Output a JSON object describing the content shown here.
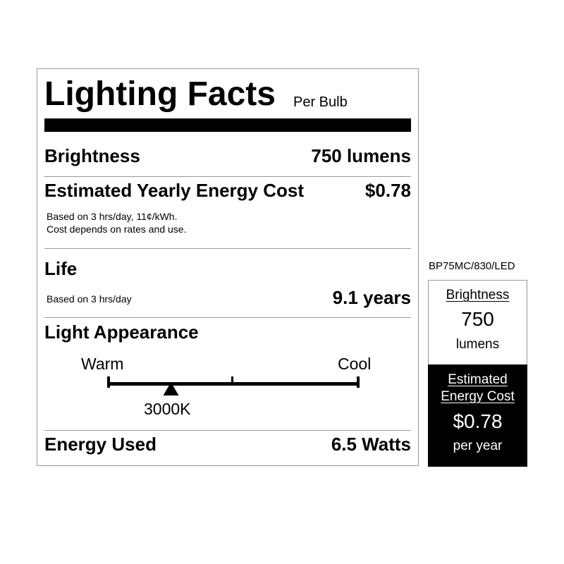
{
  "label": {
    "title": "Lighting Facts",
    "subtitle": "Per Bulb",
    "brightness": {
      "label": "Brightness",
      "value": "750 lumens"
    },
    "energy_cost": {
      "label": "Estimated Yearly Energy Cost",
      "value": "$0.78",
      "notes": [
        "Based on 3 hrs/day, 11¢/kWh.",
        "Cost depends on rates and use."
      ]
    },
    "life": {
      "label": "Life",
      "note": "Based on 3 hrs/day",
      "value": "9.1 years"
    },
    "light_appearance": {
      "label": "Light Appearance",
      "warm_label": "Warm",
      "cool_label": "Cool",
      "value": "3000K",
      "position_fraction": 0.25
    },
    "energy_used": {
      "label": "Energy Used",
      "value": "6.5 Watts"
    }
  },
  "side": {
    "model": "BP75MC/830/LED",
    "brightness_label": "Brightness",
    "brightness_value": "750",
    "brightness_unit": "lumens",
    "cost_label_1": "Estimated",
    "cost_label_2": "Energy Cost",
    "cost_value": "$0.78",
    "cost_unit": "per year"
  }
}
